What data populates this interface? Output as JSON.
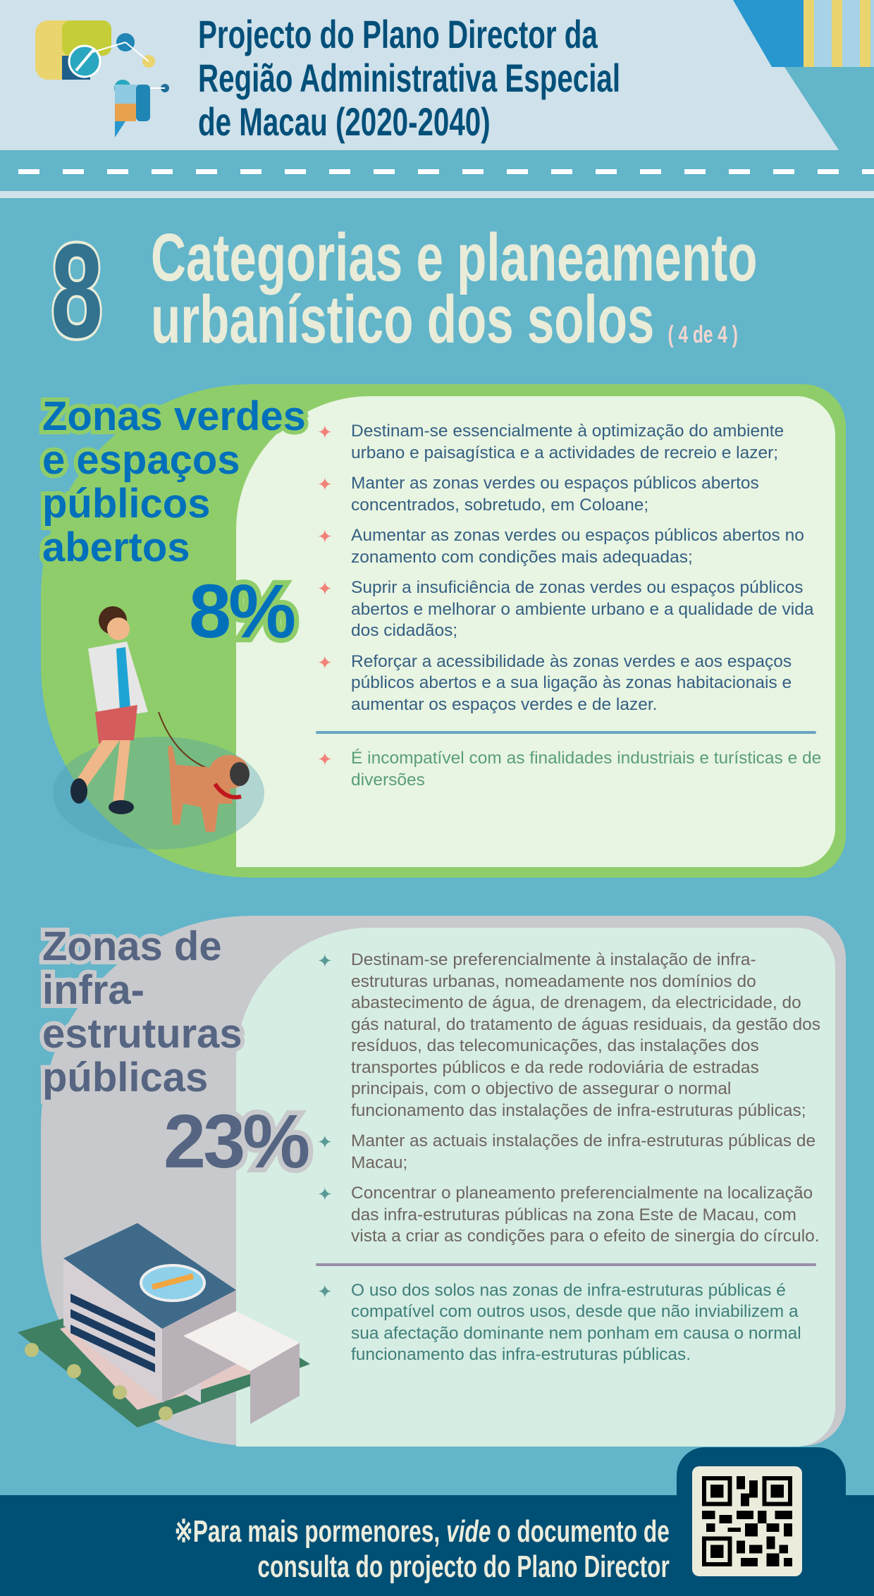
{
  "header": {
    "title_lines": [
      "Projecto do Plano Director da",
      "Região Administrativa Especial",
      "de Macau (2020-2040)"
    ]
  },
  "section": {
    "number": "8",
    "title_lines": [
      "Categorias e planeamento",
      "urbanístico dos solos"
    ],
    "part": "( 4 de 4 )"
  },
  "green_zone": {
    "heading_lines": [
      "Zonas verdes",
      "e espaços",
      "públicos",
      "abertos"
    ],
    "percentage": "8%",
    "bullets": [
      "Destinam-se essencialmente à optimização do ambiente urbano e paisagística e a actividades de recreio e lazer;",
      "Manter as zonas verdes ou espaços públicos abertos concentrados, sobretudo, em Coloane;",
      "Aumentar as zonas verdes ou espaços públicos abertos no zonamento com condições mais adequadas;",
      "Suprir a insuficiência de zonas verdes ou espaços públicos abertos e melhorar o ambiente urbano e a qualidade de vida dos cidadãos;",
      "Reforçar a acessibilidade às zonas verdes e aos espaços públicos abertos e a sua ligação às zonas habitacionais e aumentar os espaços verdes e de lazer."
    ],
    "note": "É incompatível com as finalidades industriais e turísticas e de diversões",
    "colors": {
      "heading": "#0070bb",
      "blob": "#8fcd6a",
      "panel": "#e8f5e2",
      "text": "#355f82",
      "note": "#5a9e78",
      "star": "#f2827a"
    }
  },
  "infra_zone": {
    "heading_lines": [
      "Zonas de",
      "infra-",
      "estruturas",
      "públicas"
    ],
    "percentage": "23%",
    "bullets": [
      "Destinam-se preferencialmente à instalação de infra-estruturas urbanas, nomeadamente nos domínios do abastecimento de água, de drenagem, da electricidade, do gás natural, do tratamento de águas residuais, da gestão dos resíduos, das telecomunicações, das instalações dos transportes públicos e da rede rodoviária de estradas principais, com o objectivo de assegurar o normal funcionamento das instalações de infra-estruturas públicas;",
      "Manter as actuais instalações de infra-estruturas públicas de Macau;",
      "Concentrar o planeamento preferencialmente na localização das infra-estruturas públicas na zona Este de Macau, com vista a criar as condições para o efeito de sinergia do círculo."
    ],
    "note": "O uso dos solos nas zonas de infra-estruturas públicas é compatível com outros usos, desde que não inviabilizem a sua afectação dominante nem ponham em causa o normal funcionamento das infra-estruturas públicas.",
    "colors": {
      "heading": "#566582",
      "blob": "#c8c9cc",
      "panel": "#d6ede3",
      "text": "#6e6560",
      "note": "#3f7f7a",
      "star": "#5a9a96"
    }
  },
  "footer": {
    "mark": "※",
    "text_before": "Para mais pormenores, ",
    "text_italic": "vide",
    "text_after": " o documento de",
    "line2": "consulta do projecto do Plano Director",
    "qr_icon": "qr-code"
  }
}
